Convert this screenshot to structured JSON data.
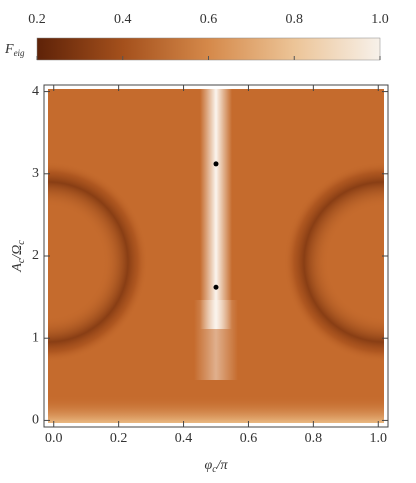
{
  "chart_data": {
    "type": "scatter",
    "colorbar": {
      "label": [
        "F",
        "eig"
      ],
      "clim": [
        0.2,
        1.0
      ],
      "ticks": [
        {
          "value": 0.2,
          "label": "0.2"
        },
        {
          "value": 0.4,
          "label": "0.4"
        },
        {
          "value": 0.6,
          "label": "0.6"
        },
        {
          "value": 0.8,
          "label": "0.8"
        },
        {
          "value": 1.0,
          "label": "1.0"
        }
      ],
      "colors": [
        "#5e2208",
        "#a4501c",
        "#d5894a",
        "#ecc497",
        "#f7f1ea"
      ]
    },
    "x_label": [
      "φ",
      "c",
      "/π"
    ],
    "y_label": [
      "A",
      "c",
      "/Ω",
      "c"
    ],
    "x": [
      0.5,
      0.5
    ],
    "y": [
      3.12,
      1.62
    ],
    "color": "#000000",
    "xlim": [
      -0.03,
      1.03
    ],
    "ylim": [
      -0.08,
      4.08
    ],
    "xticks": [
      {
        "value": 0,
        "label": "0.0"
      },
      {
        "value": 0.2,
        "label": "0.2"
      },
      {
        "value": 0.4,
        "label": "0.4"
      },
      {
        "value": 0.6,
        "label": "0.6"
      },
      {
        "value": 0.8,
        "label": "0.8"
      },
      {
        "value": 1,
        "label": "1.0"
      }
    ],
    "yticks": [
      0,
      1,
      2,
      3,
      4
    ]
  }
}
